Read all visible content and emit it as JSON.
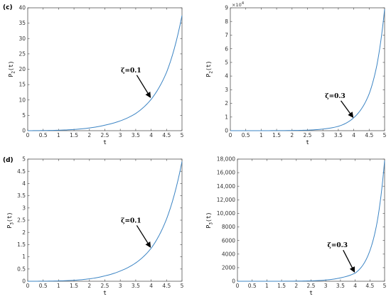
{
  "chart_data": [
    {
      "panel_label": "(c)",
      "type": "line",
      "xlabel": "t",
      "ylabel": "P2(t)",
      "ylabel_main": "P",
      "ylabel_sub": "2",
      "ylabel_tail": "(t)",
      "xlim": [
        0,
        5
      ],
      "ylim": [
        0,
        40
      ],
      "xticks": [
        0,
        0.5,
        1,
        1.5,
        2,
        2.5,
        3,
        3.5,
        4,
        4.5,
        5
      ],
      "xtick_labels": [
        "0",
        "0.5",
        "1",
        "1.5",
        "2",
        "2.5",
        "3",
        "3.5",
        "4",
        "4.5",
        "5"
      ],
      "yticks": [
        0,
        5,
        10,
        15,
        20,
        25,
        30,
        35,
        40
      ],
      "ytick_labels": [
        "0",
        "5",
        "10",
        "15",
        "20",
        "25",
        "30",
        "35",
        "40"
      ],
      "series": [
        {
          "x": [
            0,
            0.5,
            1,
            1.5,
            2,
            2.5,
            3,
            3.5,
            4,
            4.5,
            5
          ],
          "y": [
            0,
            0.05,
            0.15,
            0.4,
            0.9,
            1.8,
            3.2,
            5.6,
            10.2,
            19.0,
            37.5
          ]
        }
      ],
      "annotation": {
        "text": "ζ=0.1",
        "arrow_to": [
          4,
          10.5
        ],
        "text_at": [
          3.35,
          19
        ]
      },
      "line_color": "#3b84c4"
    },
    {
      "panel_label": "",
      "type": "line",
      "xlabel": "t",
      "ylabel": "P2(t)",
      "ylabel_main": "P",
      "ylabel_sub": "2",
      "ylabel_tail": "(t)",
      "xlim": [
        0,
        5
      ],
      "ylim": [
        0,
        90000
      ],
      "xticks": [
        0,
        0.5,
        1,
        1.5,
        2,
        2.5,
        3,
        3.5,
        4,
        4.5,
        5
      ],
      "xtick_labels": [
        "0",
        "0.5",
        "1",
        "1.5",
        "2",
        "2.5",
        "3",
        "3.5",
        "4",
        "4.5",
        "5"
      ],
      "yticks": [
        0,
        10000,
        20000,
        30000,
        40000,
        50000,
        60000,
        70000,
        80000,
        90000
      ],
      "ytick_labels": [
        "0",
        "1",
        "2",
        "3",
        "4",
        "5",
        "6",
        "7",
        "8",
        "9"
      ],
      "exponent_label": "×10",
      "exponent_power": "4",
      "series": [
        {
          "x": [
            0,
            1,
            2,
            2.5,
            3,
            3.5,
            4,
            4.25,
            4.5,
            4.75,
            5
          ],
          "y": [
            0,
            20,
            150,
            400,
            1200,
            3200,
            9500,
            16000,
            27000,
            48000,
            89000
          ]
        }
      ],
      "annotation": {
        "text": "ζ=0.3",
        "arrow_to": [
          4,
          9000
        ],
        "text_at": [
          3.4,
          24000
        ]
      },
      "line_color": "#3b84c4"
    },
    {
      "panel_label": "(d)",
      "type": "line",
      "xlabel": "t",
      "ylabel": "P3(t)",
      "ylabel_main": "P",
      "ylabel_sub": "3",
      "ylabel_tail": "(t)",
      "xlim": [
        0,
        5
      ],
      "ylim": [
        0,
        5
      ],
      "xticks": [
        0,
        0.5,
        1,
        1.5,
        2,
        2.5,
        3,
        3.5,
        4,
        4.5,
        5
      ],
      "xtick_labels": [
        "0",
        "0.5",
        "1",
        "1.5",
        "2",
        "2.5",
        "3",
        "3.5",
        "4",
        "4.5",
        "5"
      ],
      "yticks": [
        0,
        0.5,
        1,
        1.5,
        2,
        2.5,
        3,
        3.5,
        4,
        4.5,
        5
      ],
      "ytick_labels": [
        "0",
        "0.5",
        "1",
        "1.5",
        "2",
        "2.5",
        "3",
        "3.5",
        "4",
        "4.5",
        "5"
      ],
      "series": [
        {
          "x": [
            0,
            0.5,
            1,
            1.5,
            2,
            2.5,
            3,
            3.5,
            4,
            4.5,
            5
          ],
          "y": [
            0,
            0.003,
            0.015,
            0.04,
            0.1,
            0.22,
            0.42,
            0.75,
            1.35,
            2.55,
            4.9
          ]
        }
      ],
      "annotation": {
        "text": "ζ=0.1",
        "arrow_to": [
          4,
          1.35
        ],
        "text_at": [
          3.35,
          2.4
        ]
      },
      "line_color": "#3b84c4"
    },
    {
      "panel_label": "",
      "type": "line",
      "xlabel": "t",
      "ylabel": "P3(t)",
      "ylabel_main": "P",
      "ylabel_sub": "3",
      "ylabel_tail": "(t)",
      "xlim": [
        0,
        5
      ],
      "ylim": [
        0,
        18000
      ],
      "xticks": [
        0,
        0.5,
        1,
        1.5,
        2,
        2.5,
        3,
        3.5,
        4,
        4.5,
        5
      ],
      "xtick_labels": [
        "0",
        "0.5",
        "1",
        "1.5",
        "2",
        "2.5",
        "3",
        "3.5",
        "4",
        "4.5",
        "5"
      ],
      "yticks": [
        0,
        2000,
        4000,
        6000,
        8000,
        10000,
        12000,
        14000,
        16000,
        18000
      ],
      "ytick_labels": [
        "0",
        "2000",
        "4000",
        "6000",
        "8000",
        "10,000",
        "12,000",
        "14,000",
        "16,000",
        "18,000"
      ],
      "series": [
        {
          "x": [
            0,
            1,
            2,
            2.5,
            3,
            3.5,
            4,
            4.25,
            4.5,
            4.75,
            5
          ],
          "y": [
            0,
            2,
            20,
            60,
            180,
            500,
            1200,
            2300,
            4500,
            8800,
            17800
          ]
        }
      ],
      "annotation": {
        "text": "ζ=0.3",
        "arrow_to": [
          4,
          1200
        ],
        "text_at": [
          3.4,
          5000
        ]
      },
      "line_color": "#3b84c4"
    }
  ]
}
